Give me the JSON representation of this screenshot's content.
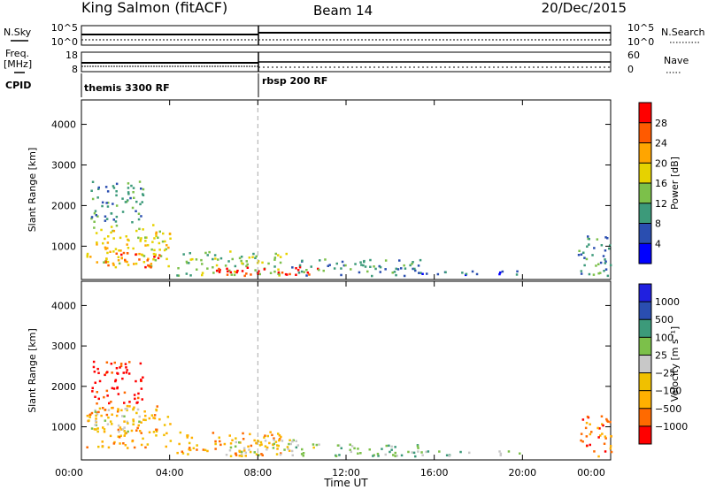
{
  "header": {
    "station": "King Salmon (fitACF)",
    "beam": "Beam 14",
    "date": "20/Dec/2015"
  },
  "strips": {
    "nsky_label": "N.Sky",
    "nsky_ticks": [
      "10^5",
      "10^0"
    ],
    "nsearch_label": "N.Search",
    "nsearch_ticks": [
      "10^5",
      "10^0"
    ],
    "freq_label": "Freq.",
    "freq_unit": "[MHz]",
    "freq_ticks": [
      "18",
      "8"
    ],
    "nave_label": "Nave",
    "nave_ticks": [
      "60",
      "0"
    ],
    "cpid_label": "CPID",
    "cpid_segments": [
      "themis 3300 RF",
      "rbsp 200 RF"
    ]
  },
  "chart_data": [
    {
      "type": "heatmap",
      "name": "power",
      "ylabel": "Slant Range [km]",
      "xlabel": "Time UT",
      "x_ticks": [
        "00:00",
        "04:00",
        "08:00",
        "12:00",
        "16:00",
        "20:00",
        "00:00"
      ],
      "xlim_hours": [
        0,
        24
      ],
      "y_ticks": [
        1000,
        2000,
        3000,
        4000
      ],
      "ylim": [
        180,
        4600
      ],
      "colorbar_label": "Power [dB]",
      "colorbar_ticks": [
        "28",
        "24",
        "20",
        "16",
        "12",
        "8",
        "4"
      ],
      "colors": [
        "#0000ff",
        "#2a4eb0",
        "#3c9a7a",
        "#7cc04a",
        "#e6d200",
        "#ffa500",
        "#ff5a00",
        "#ff0000"
      ],
      "clusters": [
        {
          "t0": 0.2,
          "t1": 4.0,
          "r0": 500,
          "r1": 1550,
          "level": 4
        },
        {
          "t0": 0.4,
          "t1": 2.8,
          "r0": 1600,
          "r1": 2650,
          "level": 2
        },
        {
          "t0": 1.0,
          "t1": 3.5,
          "r0": 500,
          "r1": 900,
          "level": 6
        },
        {
          "t0": 4.3,
          "t1": 9.3,
          "r0": 300,
          "r1": 900,
          "level": 3
        },
        {
          "t0": 6.0,
          "t1": 11.0,
          "r0": 280,
          "r1": 520,
          "level": 7
        },
        {
          "t0": 9.5,
          "t1": 15.5,
          "r0": 290,
          "r1": 700,
          "level": 2
        },
        {
          "t0": 15.0,
          "t1": 20.0,
          "r0": 290,
          "r1": 420,
          "level": 1
        },
        {
          "t0": 22.5,
          "t1": 24.0,
          "r0": 290,
          "r1": 1300,
          "level": 2
        }
      ]
    },
    {
      "type": "heatmap",
      "name": "velocity",
      "ylabel": "Slant Range [km]",
      "xlabel": "Time UT",
      "x_ticks": [
        "00:00",
        "04:00",
        "08:00",
        "12:00",
        "16:00",
        "20:00",
        "00:00"
      ],
      "xlim_hours": [
        0,
        24
      ],
      "y_ticks": [
        1000,
        2000,
        3000,
        4000
      ],
      "ylim": [
        180,
        4600
      ],
      "colorbar_label": "Velocity [m s⁻¹]",
      "colorbar_ticks": [
        "1000",
        "500",
        "100",
        "25",
        "−25",
        "−100",
        "−500",
        "−1000"
      ],
      "colors": [
        "#ff0000",
        "#ff6a00",
        "#ffb000",
        "#f0c000",
        "#c8c8c8",
        "#7cc04a",
        "#3c9a7a",
        "#2a4eb0",
        "#2020e0"
      ],
      "clusters": [
        {
          "t0": 0.2,
          "t1": 4.0,
          "r0": 500,
          "r1": 1550,
          "level": 2
        },
        {
          "t0": 0.3,
          "t1": 2.6,
          "r0": 900,
          "r1": 1500,
          "level": 4
        },
        {
          "t0": 0.4,
          "t1": 2.8,
          "r0": 1600,
          "r1": 2650,
          "level": 0
        },
        {
          "t0": 4.3,
          "t1": 9.5,
          "r0": 300,
          "r1": 900,
          "level": 2
        },
        {
          "t0": 6.5,
          "t1": 10.5,
          "r0": 300,
          "r1": 700,
          "level": 4
        },
        {
          "t0": 9.5,
          "t1": 15.5,
          "r0": 290,
          "r1": 600,
          "level": 5
        },
        {
          "t0": 15.0,
          "t1": 20.0,
          "r0": 290,
          "r1": 420,
          "level": 5
        },
        {
          "t0": 22.5,
          "t1": 24.0,
          "r0": 290,
          "r1": 1300,
          "level": 1
        }
      ]
    }
  ]
}
